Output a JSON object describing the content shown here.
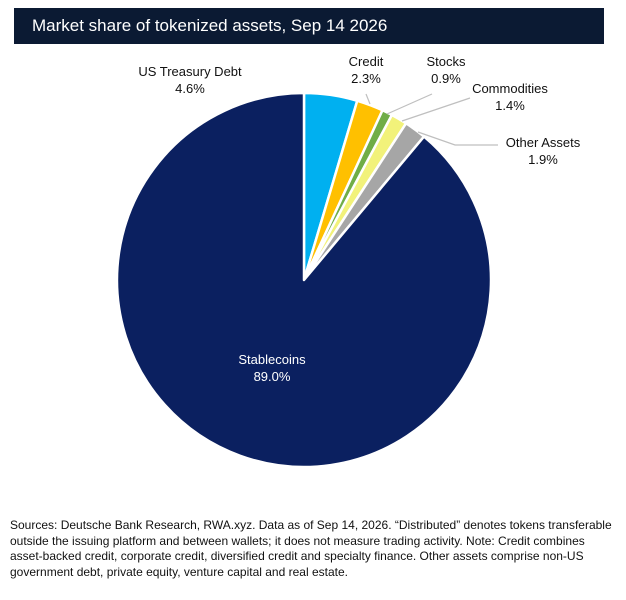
{
  "header": {
    "title": "Market share of tokenized assets, Sep 14 2026"
  },
  "chart_data": {
    "type": "pie",
    "title": "Market share of tokenized assets, Sep 14 2026",
    "start_angle_deg": 0,
    "direction": "clockwise",
    "slices": [
      {
        "label": "US Treasury Debt",
        "value": 4.6,
        "value_label": "4.6%",
        "color": "#00b0f0"
      },
      {
        "label": "Credit",
        "value": 2.3,
        "value_label": "2.3%",
        "color": "#ffc000"
      },
      {
        "label": "Stocks",
        "value": 0.9,
        "value_label": "0.9%",
        "color": "#70ad47"
      },
      {
        "label": "Commodities",
        "value": 1.4,
        "value_label": "1.4%",
        "color": "#f2f27a"
      },
      {
        "label": "Other Assets",
        "value": 1.9,
        "value_label": "1.9%",
        "color": "#a6a6a6"
      },
      {
        "label": "Stablecoins",
        "value": 89.0,
        "value_label": "89.0%",
        "color": "#0b2060"
      }
    ]
  },
  "footnote": {
    "text": "Sources: Deutsche Bank Research, RWA.xyz. Data as of Sep 14, 2026. “Distributed” denotes tokens transferable outside the issuing platform and between wallets; it does not measure trading activity. Note: Credit combines asset-backed credit, corporate credit, diversified credit and specialty finance. Other assets comprise non-US government debt, private equity, venture capital and real estate."
  },
  "colors": {
    "title_bar": "#0b1a33",
    "leader_line": "#bfbfbf"
  }
}
